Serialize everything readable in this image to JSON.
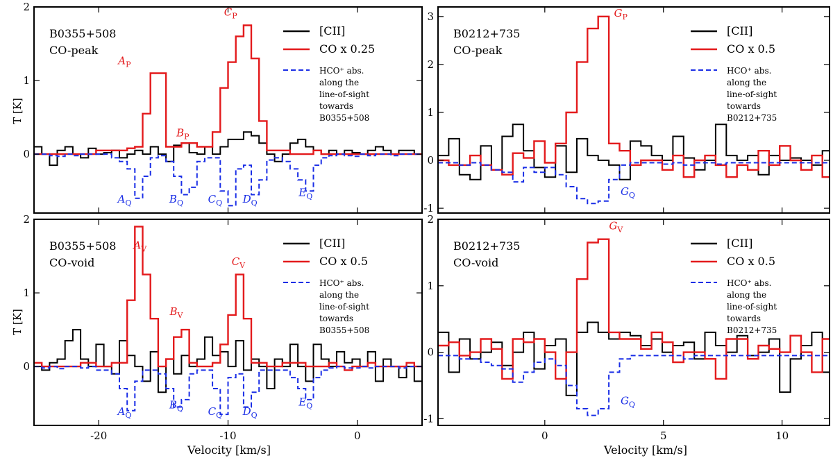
{
  "figure": {
    "ylabel": "T [K]",
    "xlabel": "Velocity [km/s]"
  },
  "colors": {
    "cii": "#000000",
    "co": "#e31a1c",
    "hco": "#1a2ee6"
  },
  "chart_data": [
    {
      "type": "line",
      "source": "B0355+508",
      "position": "CO-peak",
      "xlim": [
        -25,
        5
      ],
      "ylim": [
        -0.8,
        2
      ],
      "xticks": [
        -20,
        -10,
        0
      ],
      "yticks": [
        0,
        1,
        2
      ],
      "legend": [
        "[CII]",
        "CO x 0.25",
        "HCO⁺ abs.",
        "along the",
        "line-of-sight",
        "towards",
        "B0355+508"
      ],
      "series": [
        {
          "name": "[CII]",
          "color": "cii",
          "style": "steps",
          "x0": -25,
          "dx": 0.6,
          "values": [
            0.1,
            0.0,
            -0.15,
            0.05,
            0.1,
            0.0,
            -0.05,
            0.08,
            0.0,
            0.02,
            0.05,
            -0.05,
            0.0,
            0.05,
            0.0,
            0.1,
            0.0,
            -0.1,
            0.12,
            0.15,
            0.02,
            0.0,
            0.1,
            0.0,
            0.1,
            0.2,
            0.2,
            0.3,
            0.25,
            0.15,
            0.0,
            -0.1,
            0.0,
            0.15,
            0.2,
            0.1,
            0.05,
            0.0,
            0.05,
            0.0,
            0.05,
            0.02,
            0.0,
            0.05,
            0.1,
            0.05,
            0.0,
            0.05,
            0.05,
            0.0
          ]
        },
        {
          "name": "CO x 0.25",
          "color": "co",
          "style": "steps",
          "x0": -25,
          "dx": 0.6,
          "values": [
            0.0,
            0.0,
            0.0,
            0.0,
            0.0,
            0.0,
            0.0,
            0.0,
            0.05,
            0.05,
            0.05,
            0.05,
            0.08,
            0.1,
            0.55,
            1.1,
            1.1,
            0.1,
            0.1,
            0.15,
            0.15,
            0.1,
            0.1,
            0.3,
            0.9,
            1.25,
            1.6,
            1.75,
            1.3,
            0.45,
            0.05,
            0.05,
            0.05,
            0.0,
            0.0,
            0.0,
            0.05,
            0.0,
            0.0,
            0.0,
            0.0,
            0.0,
            0.0,
            0.0,
            0.0,
            0.0,
            0.0,
            0.0,
            0.0,
            0.0
          ]
        },
        {
          "name": "HCO⁺ abs.",
          "color": "hco",
          "style": "steps-dashed",
          "x0": -25,
          "dx": 0.6,
          "values": [
            0.0,
            0.0,
            -0.02,
            -0.03,
            0.0,
            -0.02,
            0.0,
            0.0,
            0.0,
            0.0,
            -0.05,
            -0.1,
            -0.2,
            -0.6,
            -0.3,
            -0.05,
            -0.02,
            -0.1,
            -0.3,
            -0.55,
            -0.45,
            -0.1,
            -0.05,
            -0.05,
            -0.5,
            -0.7,
            -0.2,
            -0.15,
            -0.55,
            -0.35,
            -0.08,
            -0.05,
            -0.1,
            -0.2,
            -0.35,
            -0.5,
            -0.15,
            -0.05,
            -0.02,
            0.0,
            -0.02,
            -0.03,
            0.0,
            -0.02,
            0.0,
            0.0,
            -0.02,
            0.0,
            0.0,
            0.0
          ]
        }
      ],
      "annotations": [
        {
          "label": "A",
          "sub": "P",
          "x": -18,
          "y": 1.22,
          "color": "co"
        },
        {
          "label": "B",
          "sub": "P",
          "x": -13.5,
          "y": 0.24,
          "color": "co"
        },
        {
          "label": "C",
          "sub": "P",
          "x": -9.8,
          "y": 1.88,
          "color": "co"
        },
        {
          "label": "A",
          "sub": "Q",
          "x": -18,
          "y": -0.66,
          "color": "hco"
        },
        {
          "label": "B",
          "sub": "Q",
          "x": -14,
          "y": -0.66,
          "color": "hco"
        },
        {
          "label": "C",
          "sub": "Q",
          "x": -11,
          "y": -0.66,
          "color": "hco"
        },
        {
          "label": "D",
          "sub": "Q",
          "x": -8.3,
          "y": -0.66,
          "color": "hco"
        },
        {
          "label": "E",
          "sub": "Q",
          "x": -4,
          "y": -0.57,
          "color": "hco"
        }
      ]
    },
    {
      "type": "line",
      "source": "B0212+735",
      "position": "CO-peak",
      "xlim": [
        -4.5,
        12
      ],
      "ylim": [
        -1.1,
        3.2
      ],
      "xticks": [
        0,
        5,
        10
      ],
      "yticks": [
        -1,
        0,
        1,
        2,
        3
      ],
      "legend": [
        "[CII]",
        "CO x 0.5",
        "HCO⁺ abs.",
        "along the",
        "line-of-sight",
        "towards",
        "B0212+735"
      ],
      "series": [
        {
          "name": "[CII]",
          "color": "cii",
          "style": "steps",
          "x0": -4.5,
          "dx": 0.45,
          "values": [
            0.1,
            0.45,
            -0.3,
            -0.4,
            0.3,
            -0.2,
            0.5,
            0.75,
            0.2,
            -0.15,
            -0.35,
            0.3,
            -0.25,
            0.45,
            0.1,
            0.0,
            -0.1,
            -0.4,
            0.4,
            0.3,
            0.1,
            0.0,
            0.5,
            0.05,
            -0.2,
            0.0,
            0.75,
            0.1,
            0.0,
            0.1,
            -0.3,
            0.1,
            0.0,
            0.05,
            0.0,
            -0.1,
            0.2,
            0.0,
            0.1,
            0.0
          ]
        },
        {
          "name": "CO x 0.5",
          "color": "co",
          "style": "steps",
          "x0": -4.5,
          "dx": 0.45,
          "values": [
            0.0,
            -0.1,
            -0.1,
            0.1,
            -0.1,
            -0.2,
            -0.3,
            0.15,
            0.05,
            0.4,
            -0.05,
            0.35,
            1.0,
            2.05,
            2.75,
            3.0,
            0.35,
            0.2,
            -0.1,
            0.0,
            0.0,
            -0.2,
            0.1,
            -0.35,
            0.0,
            0.1,
            -0.1,
            -0.35,
            -0.1,
            -0.2,
            0.2,
            -0.1,
            0.3,
            0.0,
            -0.2,
            0.1,
            -0.35,
            0.3,
            -0.1,
            0.0
          ]
        },
        {
          "name": "HCO⁺ abs.",
          "color": "hco",
          "style": "steps-dashed",
          "x0": -4.5,
          "dx": 0.45,
          "values": [
            -0.05,
            -0.05,
            -0.1,
            -0.05,
            -0.1,
            -0.2,
            -0.25,
            -0.45,
            -0.15,
            -0.25,
            -0.15,
            -0.3,
            -0.55,
            -0.8,
            -0.9,
            -0.85,
            -0.4,
            -0.1,
            -0.05,
            -0.05,
            -0.05,
            -0.08,
            -0.05,
            -0.1,
            -0.05,
            -0.05,
            -0.08,
            -0.05,
            -0.05,
            -0.05,
            -0.05,
            -0.05,
            -0.05,
            -0.05,
            -0.05,
            -0.05,
            -0.05,
            -0.05,
            -0.05,
            -0.05
          ]
        }
      ],
      "annotations": [
        {
          "label": "G",
          "sub": "P",
          "x": 3.2,
          "y": 3.0,
          "color": "co"
        },
        {
          "label": "G",
          "sub": "Q",
          "x": 3.5,
          "y": -0.72,
          "color": "hco"
        }
      ]
    },
    {
      "type": "line",
      "source": "B0355+508",
      "position": "CO-void",
      "xlim": [
        -25,
        5
      ],
      "ylim": [
        -0.8,
        2
      ],
      "xticks": [
        -20,
        -10,
        0
      ],
      "yticks": [
        0,
        1,
        2
      ],
      "legend": [
        "[CII]",
        "CO x 0.5",
        "HCO⁺ abs.",
        "along the",
        "line-of-sight",
        "towards",
        "B0355+508"
      ],
      "series": [
        {
          "name": "[CII]",
          "color": "cii",
          "style": "steps",
          "x0": -25,
          "dx": 0.6,
          "values": [
            0.0,
            -0.05,
            0.05,
            0.1,
            0.35,
            0.5,
            0.1,
            0.0,
            0.3,
            0.0,
            -0.1,
            0.35,
            0.15,
            0.0,
            -0.2,
            0.2,
            -0.35,
            0.1,
            -0.1,
            0.15,
            0.0,
            0.1,
            0.4,
            0.15,
            0.2,
            0.0,
            0.35,
            -0.05,
            0.1,
            0.0,
            -0.3,
            0.1,
            0.0,
            0.3,
            0.0,
            -0.2,
            0.3,
            0.1,
            0.0,
            0.2,
            0.05,
            0.1,
            0.0,
            0.2,
            -0.2,
            0.1,
            0.0,
            -0.15,
            0.0,
            -0.2
          ]
        },
        {
          "name": "CO x 0.5",
          "color": "co",
          "style": "steps",
          "x0": -25,
          "dx": 0.6,
          "values": [
            0.05,
            0.0,
            0.0,
            0.0,
            0.0,
            0.0,
            0.05,
            0.05,
            0.0,
            0.0,
            0.05,
            0.05,
            0.9,
            1.9,
            1.25,
            0.65,
            0.0,
            0.1,
            0.4,
            0.5,
            0.05,
            0.0,
            0.0,
            0.05,
            0.3,
            0.7,
            1.25,
            0.65,
            0.05,
            0.05,
            0.0,
            0.0,
            0.05,
            0.05,
            0.05,
            0.0,
            0.0,
            0.0,
            0.05,
            0.0,
            -0.05,
            0.0,
            0.0,
            0.05,
            0.0,
            0.0,
            0.0,
            0.0,
            0.05,
            0.0
          ]
        },
        {
          "name": "HCO⁺ abs.",
          "color": "hco",
          "style": "steps-dashed",
          "x0": -25,
          "dx": 0.6,
          "values": [
            0.0,
            -0.02,
            0.0,
            -0.03,
            0.0,
            0.0,
            -0.02,
            0.0,
            -0.05,
            -0.05,
            -0.1,
            -0.3,
            -0.6,
            -0.2,
            -0.05,
            -0.05,
            -0.1,
            -0.3,
            -0.55,
            -0.45,
            -0.1,
            -0.05,
            -0.05,
            -0.3,
            -0.65,
            -0.15,
            -0.1,
            -0.55,
            -0.35,
            -0.05,
            -0.05,
            -0.05,
            -0.05,
            -0.15,
            -0.3,
            -0.45,
            -0.15,
            -0.05,
            -0.02,
            0.0,
            -0.02,
            -0.02,
            0.0,
            -0.02,
            0.0,
            0.0,
            0.0,
            -0.02,
            0.0,
            0.0
          ]
        }
      ],
      "annotations": [
        {
          "label": "A",
          "sub": "V",
          "x": -16.8,
          "y": 1.6,
          "color": "co"
        },
        {
          "label": "B",
          "sub": "V",
          "x": -14,
          "y": 0.7,
          "color": "co"
        },
        {
          "label": "C",
          "sub": "V",
          "x": -9.2,
          "y": 1.38,
          "color": "co"
        },
        {
          "label": "A",
          "sub": "Q",
          "x": -18,
          "y": -0.66,
          "color": "hco"
        },
        {
          "label": "B",
          "sub": "Q",
          "x": -14,
          "y": -0.57,
          "color": "hco"
        },
        {
          "label": "C",
          "sub": "Q",
          "x": -11,
          "y": -0.66,
          "color": "hco"
        },
        {
          "label": "D",
          "sub": "Q",
          "x": -8.3,
          "y": -0.66,
          "color": "hco"
        },
        {
          "label": "E",
          "sub": "Q",
          "x": -4,
          "y": -0.53,
          "color": "hco"
        }
      ]
    },
    {
      "type": "line",
      "source": "B0212+735",
      "position": "CO-void",
      "xlim": [
        -4.5,
        12
      ],
      "ylim": [
        -1.1,
        2
      ],
      "xticks": [
        0,
        5,
        10
      ],
      "yticks": [
        -1,
        0,
        1,
        2
      ],
      "legend": [
        "[CII]",
        "CO x 0.5",
        "HCO⁺ abs.",
        "along the",
        "line-of-sight",
        "towards",
        "B0212+735"
      ],
      "series": [
        {
          "name": "[CII]",
          "color": "cii",
          "style": "steps",
          "x0": -4.5,
          "dx": 0.45,
          "values": [
            0.3,
            -0.3,
            0.2,
            -0.1,
            0.0,
            0.15,
            -0.2,
            0.0,
            0.3,
            -0.25,
            0.1,
            0.2,
            -0.65,
            0.3,
            0.45,
            0.3,
            0.2,
            0.3,
            0.25,
            0.1,
            0.2,
            0.0,
            0.1,
            0.15,
            -0.1,
            0.3,
            0.1,
            0.0,
            0.25,
            -0.05,
            0.0,
            0.2,
            -0.6,
            -0.1,
            0.1,
            0.3,
            -0.3,
            0.0,
            0.3,
            0.1
          ]
        },
        {
          "name": "CO x 0.5",
          "color": "co",
          "style": "steps",
          "x0": -4.5,
          "dx": 0.45,
          "values": [
            0.1,
            0.15,
            -0.05,
            0.0,
            0.2,
            0.05,
            -0.4,
            0.2,
            0.15,
            0.2,
            0.0,
            -0.4,
            0.0,
            1.1,
            1.65,
            1.7,
            0.3,
            0.2,
            0.2,
            0.05,
            0.3,
            0.15,
            -0.15,
            0.0,
            0.0,
            -0.1,
            -0.4,
            0.2,
            0.2,
            -0.1,
            0.1,
            0.05,
            0.0,
            0.25,
            0.0,
            -0.3,
            0.2,
            0.0,
            -0.3,
            0.2
          ]
        },
        {
          "name": "HCO⁺ abs.",
          "color": "hco",
          "style": "steps-dashed",
          "x0": -4.5,
          "dx": 0.45,
          "values": [
            -0.05,
            -0.05,
            -0.1,
            -0.1,
            -0.15,
            -0.2,
            -0.25,
            -0.45,
            -0.3,
            -0.15,
            -0.1,
            -0.2,
            -0.5,
            -0.85,
            -0.95,
            -0.85,
            -0.3,
            -0.1,
            -0.05,
            -0.05,
            -0.05,
            -0.05,
            -0.05,
            -0.1,
            -0.05,
            -0.05,
            -0.05,
            -0.05,
            -0.05,
            -0.05,
            -0.05,
            -0.05,
            -0.05,
            -0.05,
            -0.05,
            -0.05,
            -0.05,
            -0.05,
            -0.05,
            -0.05
          ]
        }
      ],
      "annotations": [
        {
          "label": "G",
          "sub": "V",
          "x": 3.0,
          "y": 1.85,
          "color": "co"
        },
        {
          "label": "G",
          "sub": "Q",
          "x": 3.5,
          "y": -0.78,
          "color": "hco"
        }
      ]
    }
  ]
}
